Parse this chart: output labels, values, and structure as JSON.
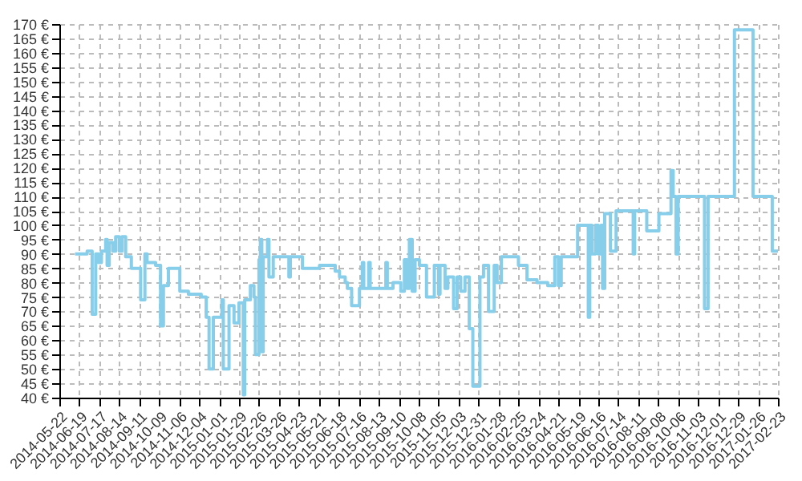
{
  "chart_data": {
    "type": "step",
    "x": [
      "2014-06-13",
      "2014-06-30",
      "2014-07-07",
      "2014-07-12",
      "2014-07-16",
      "2014-07-20",
      "2014-07-26",
      "2014-07-28",
      "2014-07-31",
      "2014-08-05",
      "2014-08-09",
      "2014-08-14",
      "2014-08-18",
      "2014-08-23",
      "2014-08-31",
      "2014-09-13",
      "2014-09-19",
      "2014-09-22",
      "2014-10-04",
      "2014-10-11",
      "2014-10-15",
      "2014-10-22",
      "2014-11-07",
      "2014-11-19",
      "2014-12-07",
      "2014-12-14",
      "2014-12-18",
      "2014-12-24",
      "2015-01-05",
      "2015-01-07",
      "2015-01-15",
      "2015-01-22",
      "2015-01-29",
      "2015-02-04",
      "2015-02-06",
      "2015-02-14",
      "2015-02-19",
      "2015-02-21",
      "2015-02-26",
      "2015-02-28",
      "2015-03-02",
      "2015-03-04",
      "2015-03-10",
      "2015-03-12",
      "2015-03-18",
      "2015-04-09",
      "2015-04-11",
      "2015-04-28",
      "2015-05-22",
      "2015-06-13",
      "2015-06-19",
      "2015-06-27",
      "2015-06-30",
      "2015-07-06",
      "2015-07-17",
      "2015-07-21",
      "2015-07-23",
      "2015-07-30",
      "2015-08-01",
      "2015-08-23",
      "2015-08-25",
      "2015-09-02",
      "2015-09-13",
      "2015-09-18",
      "2015-09-22",
      "2015-09-25",
      "2015-09-29",
      "2015-10-03",
      "2015-10-09",
      "2015-10-19",
      "2015-10-30",
      "2015-11-05",
      "2015-11-07",
      "2015-11-14",
      "2015-11-18",
      "2015-11-26",
      "2015-12-01",
      "2015-12-06",
      "2015-12-12",
      "2015-12-18",
      "2015-12-23",
      "2016-01-02",
      "2016-01-07",
      "2016-01-14",
      "2016-01-22",
      "2016-01-26",
      "2016-02-01",
      "2016-02-25",
      "2016-03-08",
      "2016-03-22",
      "2016-04-06",
      "2016-04-16",
      "2016-04-21",
      "2016-04-25",
      "2016-05-18",
      "2016-06-02",
      "2016-06-04",
      "2016-06-07",
      "2016-06-12",
      "2016-06-16",
      "2016-06-20",
      "2016-06-22",
      "2016-06-25",
      "2016-07-03",
      "2016-07-11",
      "2016-08-04",
      "2016-08-06",
      "2016-08-23",
      "2016-09-09",
      "2016-09-26",
      "2016-09-29",
      "2016-10-03",
      "2016-10-06",
      "2016-11-12",
      "2016-11-17",
      "2016-12-24",
      "2017-01-19",
      "2017-02-15",
      "2017-02-23"
    ],
    "series": [
      {
        "color": "#87ceeb",
        "values": [
          90,
          91,
          69,
          90,
          87,
          91,
          95,
          86,
          94,
          91,
          96,
          91,
          96,
          89,
          85,
          74,
          90,
          87,
          86,
          65,
          79,
          85,
          77,
          76,
          75,
          68,
          50,
          68,
          74,
          50,
          72,
          66,
          73,
          41,
          74,
          79,
          75,
          55,
          88,
          95,
          56,
          89,
          95,
          82,
          89,
          82,
          89,
          85,
          86,
          84,
          82,
          80,
          78,
          72,
          78,
          87,
          78,
          87,
          78,
          87,
          78,
          80,
          77,
          88,
          78,
          95,
          77,
          88,
          86,
          75,
          86,
          76,
          86,
          78,
          82,
          71,
          82,
          77,
          82,
          64,
          44,
          82,
          86,
          70,
          86,
          80,
          89,
          86,
          81,
          80,
          79,
          89,
          79,
          89,
          100,
          68,
          100,
          90,
          100,
          90,
          100,
          78,
          104,
          91,
          105,
          90,
          105,
          98,
          104,
          119,
          110,
          90,
          110,
          71,
          110,
          168,
          110,
          91,
          91
        ]
      }
    ],
    "xlim": [
      "2014-05-22",
      "2017-02-23"
    ],
    "xticks": [
      "2014-05-22",
      "2014-06-19",
      "2014-07-17",
      "2014-08-14",
      "2014-09-11",
      "2014-10-09",
      "2014-11-06",
      "2014-12-04",
      "2015-01-01",
      "2015-01-29",
      "2015-02-26",
      "2015-03-26",
      "2015-04-23",
      "2015-05-21",
      "2015-06-18",
      "2015-07-16",
      "2015-08-13",
      "2015-09-10",
      "2015-10-08",
      "2015-11-05",
      "2015-12-03",
      "2015-12-31",
      "2016-01-28",
      "2016-02-25",
      "2016-03-24",
      "2016-04-21",
      "2016-05-19",
      "2016-06-16",
      "2016-07-14",
      "2016-08-11",
      "2016-09-08",
      "2016-10-06",
      "2016-11-03",
      "2016-12-01",
      "2016-12-29",
      "2017-01-26",
      "2017-02-23"
    ],
    "ylim": [
      40,
      170
    ],
    "yticks": [
      {
        "value": 40,
        "label": "40 €"
      },
      {
        "value": 45,
        "label": "45 €"
      },
      {
        "value": 50,
        "label": "50 €"
      },
      {
        "value": 55,
        "label": "55 €"
      },
      {
        "value": 60,
        "label": "60 €"
      },
      {
        "value": 65,
        "label": "65 €"
      },
      {
        "value": 70,
        "label": "70 €"
      },
      {
        "value": 75,
        "label": "75 €"
      },
      {
        "value": 80,
        "label": "80 €"
      },
      {
        "value": 85,
        "label": "85 €"
      },
      {
        "value": 90,
        "label": "90 €"
      },
      {
        "value": 95,
        "label": "95 €"
      },
      {
        "value": 100,
        "label": "100 €"
      },
      {
        "value": 105,
        "label": "105 €"
      },
      {
        "value": 110,
        "label": "110 €"
      },
      {
        "value": 115,
        "label": "115 €"
      },
      {
        "value": 120,
        "label": "120 €"
      },
      {
        "value": 125,
        "label": "125 €"
      },
      {
        "value": 130,
        "label": "130 €"
      },
      {
        "value": 135,
        "label": "135 €"
      },
      {
        "value": 140,
        "label": "140 €"
      },
      {
        "value": 145,
        "label": "145 €"
      },
      {
        "value": 150,
        "label": "150 €"
      },
      {
        "value": 155,
        "label": "155 €"
      },
      {
        "value": 160,
        "label": "160 €"
      },
      {
        "value": 165,
        "label": "165 €"
      },
      {
        "value": 170,
        "label": "170 €"
      }
    ],
    "grid": true,
    "marker": "none",
    "line_style": "solid"
  }
}
